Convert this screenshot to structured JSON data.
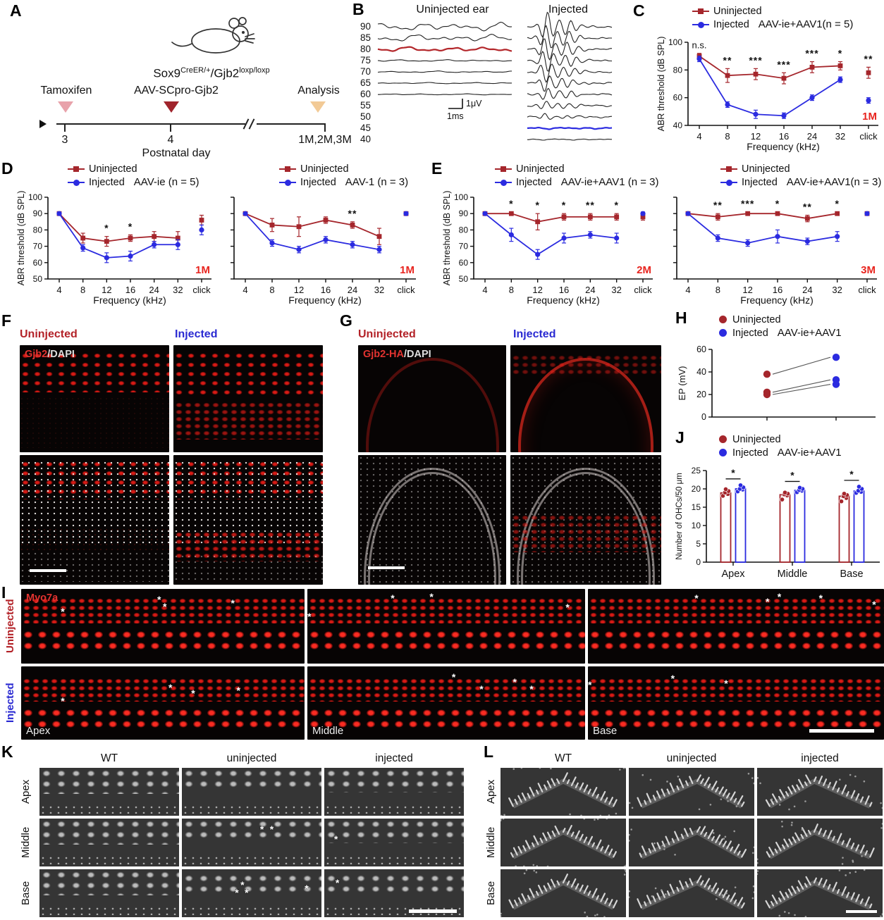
{
  "panels": {
    "A": "A",
    "B": "B",
    "C": "C",
    "D": "D",
    "E": "E",
    "F": "F",
    "G": "G",
    "H": "H",
    "I": "I",
    "J": "J",
    "K": "K",
    "L": "L"
  },
  "colors": {
    "uninjected": "#a5262c",
    "injected": "#2b2be0",
    "timepoint": "#e8251f",
    "tamoxifen": "#e8a2aa",
    "aav_injection": "#a0242c",
    "analysis": "#f2ca96"
  },
  "panelA": {
    "genotype": {
      "base1": "Sox9",
      "sup1": "CreER/+",
      "base2": "/Gjb2",
      "sup2": "loxp/loxp"
    },
    "events": [
      {
        "label": "Tamoxifen",
        "day": "3"
      },
      {
        "label": "AAV-SCpro-Gjb2",
        "day": "4"
      },
      {
        "label": "Analysis",
        "day": "1M,2M,3M"
      }
    ],
    "axis_label": "Postnatal day"
  },
  "panelB": {
    "title_left": "Uninjected ear",
    "title_right": "Injected",
    "levels": [
      "90",
      "85",
      "80",
      "75",
      "70",
      "65",
      "60",
      "55",
      "50",
      "45",
      "40"
    ],
    "scale_v": "1μV",
    "scale_h": "1ms"
  },
  "chart_data": [
    {
      "id": "C",
      "type": "line",
      "title": "AAV-ie+AAV1(n = 5)",
      "timepoint": "1M",
      "xlabel": "Frequency (kHz)",
      "ylabel": "ABR threshold (dB SPL)",
      "categories": [
        "4",
        "8",
        "12",
        "16",
        "24",
        "32",
        "click"
      ],
      "ylim": [
        40,
        100
      ],
      "yticks": [
        40,
        60,
        80,
        100
      ],
      "series": [
        {
          "name": "Uninjected",
          "marker": "square",
          "color": "#a5262c",
          "values": [
            90,
            76,
            77,
            74,
            82,
            83,
            78
          ],
          "errors": [
            2,
            5,
            4,
            4,
            4,
            3,
            4
          ]
        },
        {
          "name": "Injected",
          "marker": "circle",
          "color": "#2b2be0",
          "values": [
            88,
            55,
            48,
            47,
            60,
            73,
            58
          ],
          "errors": [
            2,
            2,
            3,
            2,
            2,
            2,
            2
          ]
        }
      ],
      "sig": [
        "n.s.",
        "**",
        "***",
        "***",
        "***",
        "*",
        "**"
      ]
    },
    {
      "id": "D1",
      "type": "line",
      "title": "AAV-ie (n = 5)",
      "timepoint": "1M",
      "xlabel": "Frequency (kHz)",
      "ylabel": "ABR threshold (dB SPL)",
      "categories": [
        "4",
        "8",
        "12",
        "16",
        "24",
        "32",
        "click"
      ],
      "ylim": [
        50,
        100
      ],
      "yticks": [
        50,
        60,
        70,
        80,
        90,
        100
      ],
      "series": [
        {
          "name": "Uninjected",
          "marker": "square",
          "color": "#a5262c",
          "values": [
            90,
            75,
            73,
            75,
            76,
            75,
            86
          ],
          "errors": [
            1,
            3,
            3,
            2,
            3,
            4,
            3
          ]
        },
        {
          "name": "Injected",
          "marker": "circle",
          "color": "#2b2be0",
          "values": [
            90,
            69,
            63,
            64,
            71,
            71,
            80
          ],
          "errors": [
            1,
            2,
            3,
            3,
            2,
            3,
            3
          ]
        }
      ],
      "sig": [
        "",
        "",
        "*",
        "*",
        "",
        "",
        ""
      ]
    },
    {
      "id": "D2",
      "type": "line",
      "title": "AAV-1 (n = 3)",
      "timepoint": "1M",
      "xlabel": "Frequency (kHz)",
      "ylabel": "ABR threshold (dB SPL)",
      "categories": [
        "4",
        "8",
        "12",
        "16",
        "24",
        "32",
        "click"
      ],
      "ylim": [
        50,
        100
      ],
      "yticks": [
        50,
        60,
        70,
        80,
        90,
        100
      ],
      "series": [
        {
          "name": "Uninjected",
          "marker": "square",
          "color": "#a5262c",
          "values": [
            90,
            83,
            82,
            86,
            83,
            76,
            90
          ],
          "errors": [
            0,
            4,
            6,
            2,
            2,
            5,
            1
          ]
        },
        {
          "name": "Injected",
          "marker": "circle",
          "color": "#2b2be0",
          "values": [
            90,
            72,
            68,
            74,
            71,
            68,
            90
          ],
          "errors": [
            0,
            2,
            2,
            2,
            2,
            2,
            1
          ]
        }
      ],
      "sig": [
        "",
        "",
        "",
        "",
        "**",
        "",
        ""
      ]
    },
    {
      "id": "E1",
      "type": "line",
      "title": "AAV-ie+AAV1 (n = 3)",
      "timepoint": "2M",
      "xlabel": "Frequency (kHz)",
      "ylabel": "ABR threshold (dB SPL)",
      "categories": [
        "4",
        "8",
        "12",
        "16",
        "24",
        "32",
        "click"
      ],
      "ylim": [
        50,
        100
      ],
      "yticks": [
        50,
        60,
        70,
        80,
        90,
        100
      ],
      "series": [
        {
          "name": "Uninjected",
          "marker": "square",
          "color": "#a5262c",
          "values": [
            90,
            90,
            85,
            88,
            88,
            88,
            88
          ],
          "errors": [
            0,
            1,
            5,
            2,
            2,
            2,
            2
          ]
        },
        {
          "name": "Injected",
          "marker": "circle",
          "color": "#2b2be0",
          "values": [
            90,
            77,
            65,
            75,
            77,
            75,
            90
          ],
          "errors": [
            0,
            4,
            3,
            3,
            2,
            3,
            1
          ]
        }
      ],
      "sig": [
        "",
        "*",
        "*",
        "*",
        "**",
        "*",
        ""
      ]
    },
    {
      "id": "E2",
      "type": "line",
      "title": "AAV-ie+AAV1(n = 3)",
      "timepoint": "3M",
      "xlabel": "Frequency (kHz)",
      "ylabel": "ABR threshold (dB SPL)",
      "categories": [
        "4",
        "8",
        "12",
        "16",
        "24",
        "32",
        "click"
      ],
      "ylim": [
        50,
        100
      ],
      "yticks": [
        50,
        60,
        70,
        80,
        90,
        100
      ],
      "series": [
        {
          "name": "Uninjected",
          "marker": "square",
          "color": "#a5262c",
          "values": [
            90,
            88,
            90,
            90,
            87,
            90,
            90
          ],
          "errors": [
            0,
            2,
            1,
            1,
            2,
            1,
            1
          ]
        },
        {
          "name": "Injected",
          "marker": "circle",
          "color": "#2b2be0",
          "values": [
            90,
            75,
            72,
            76,
            73,
            76,
            90
          ],
          "errors": [
            0,
            2,
            2,
            4,
            2,
            3,
            1
          ]
        }
      ],
      "sig": [
        "",
        "**",
        "***",
        "*",
        "**",
        "*",
        ""
      ]
    },
    {
      "id": "H",
      "type": "paired-scatter",
      "title": "AAV-ie+AAV1",
      "legend": [
        "Uninjected",
        "Injected"
      ],
      "ylabel": "EP (mV)",
      "ylim": [
        0,
        60
      ],
      "yticks": [
        0,
        20,
        40,
        60
      ],
      "pairs": [
        {
          "uninjected": 38,
          "injected": 53
        },
        {
          "uninjected": 22,
          "injected": 33
        },
        {
          "uninjected": 20,
          "injected": 29
        }
      ]
    },
    {
      "id": "J",
      "type": "bar",
      "title": "AAV-ie+AAV1",
      "legend": [
        "Uninjected",
        "Injected"
      ],
      "ylabel": "Number of OHCs/50 μm",
      "ylim": [
        0,
        25
      ],
      "yticks": [
        0,
        5,
        10,
        15,
        20,
        25
      ],
      "categories": [
        "Apex",
        "Middle",
        "Base"
      ],
      "series": [
        {
          "name": "Uninjected",
          "color": "#a5262c",
          "means": [
            18.9,
            18.4,
            18.0
          ],
          "errors": [
            0.4,
            0.3,
            0.4
          ],
          "dots": [
            [
              18.1,
              18.6,
              19.0,
              19.4,
              19.9
            ],
            [
              17.1,
              18.2,
              18.5,
              18.7,
              19.0
            ],
            [
              16.6,
              17.5,
              18.0,
              18.3,
              18.7
            ]
          ]
        },
        {
          "name": "Injected",
          "color": "#2b2be0",
          "means": [
            20.0,
            19.6,
            19.4
          ],
          "errors": [
            0.3,
            0.2,
            0.3
          ],
          "dots": [
            [
              19.3,
              19.8,
              20.0,
              20.4,
              21.0
            ],
            [
              19.1,
              19.5,
              19.7,
              20.0,
              20.3
            ],
            [
              18.9,
              19.2,
              19.5,
              20.0,
              20.6
            ]
          ]
        }
      ],
      "sig": [
        "*",
        "*",
        "*"
      ]
    }
  ],
  "panelF": {
    "col_headers": [
      "Uninjected",
      "Injected"
    ],
    "stain_red": "Gjb2",
    "stain_white": "/DAPI"
  },
  "panelG": {
    "col_headers": [
      "Uninjected",
      "Injected"
    ],
    "stain_red": "Gjb2-HA",
    "stain_white": "/DAPI"
  },
  "panelI": {
    "marker": "Myo7a",
    "row_labels": [
      "Uninjected",
      "Injected"
    ],
    "position_labels": [
      "Apex",
      "Middle",
      "Base"
    ],
    "asterisk": "*"
  },
  "panelK": {
    "col_headers": [
      "WT",
      "uninjected",
      "injected"
    ],
    "row_labels": [
      "Apex",
      "Middle",
      "Base"
    ],
    "asterisk": "*"
  },
  "panelL": {
    "col_headers": [
      "WT",
      "uninjected",
      "injected"
    ],
    "row_labels": [
      "Apex",
      "Middle",
      "Base"
    ]
  }
}
